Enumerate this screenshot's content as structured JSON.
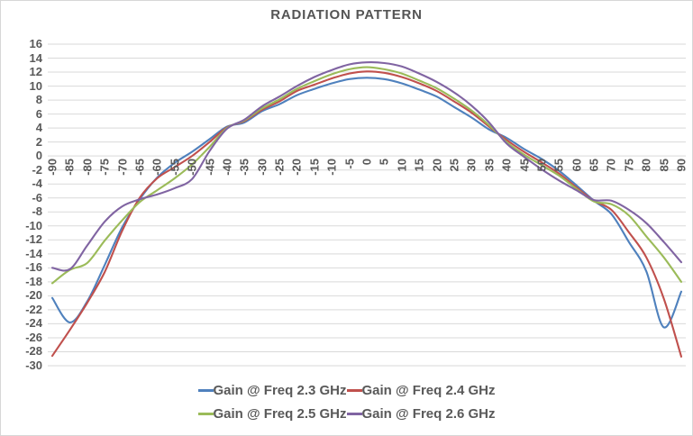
{
  "title": "RADIATION PATTERN",
  "style": {
    "text_color": "#595959",
    "grid_color": "#d9d9d9",
    "border_color": "#d7d7d7",
    "background": "#ffffff"
  },
  "chart_data": {
    "type": "line",
    "title": "RADIATION PATTERN",
    "xlabel": "",
    "ylabel": "",
    "grid": "horizontal",
    "legend_position": "bottom",
    "legend_rows": [
      [
        0,
        1
      ],
      [
        2,
        3
      ]
    ],
    "xlim": [
      -90,
      90
    ],
    "ylim": [
      -30,
      16
    ],
    "y_tick_step": 2,
    "y_ticks": [
      16,
      14,
      12,
      10,
      8,
      6,
      4,
      2,
      0,
      -2,
      -4,
      -6,
      -8,
      -10,
      -12,
      -14,
      -16,
      -18,
      -20,
      -22,
      -24,
      -26,
      -28,
      -30
    ],
    "x": [
      -90,
      -85,
      -80,
      -75,
      -70,
      -65,
      -60,
      -55,
      -50,
      -45,
      -40,
      -35,
      -30,
      -25,
      -20,
      -15,
      -10,
      -5,
      0,
      5,
      10,
      15,
      20,
      25,
      30,
      35,
      40,
      45,
      50,
      55,
      60,
      65,
      70,
      75,
      80,
      85,
      90
    ],
    "series": [
      {
        "name": "Gain @ Freq 2.3 GHz",
        "color": "#4F81BD",
        "values": [
          -20.3,
          -23.8,
          -20.8,
          -15.6,
          -10.2,
          -6.2,
          -3.1,
          -1.0,
          0.6,
          2.4,
          4.2,
          4.8,
          6.4,
          7.4,
          8.7,
          9.6,
          10.4,
          11.0,
          11.2,
          11.0,
          10.4,
          9.5,
          8.5,
          7.0,
          5.5,
          3.8,
          2.6,
          1.0,
          -0.4,
          -2.1,
          -4.2,
          -6.4,
          -8.3,
          -12.3,
          -16.5,
          -24.5,
          -19.4
        ]
      },
      {
        "name": "Gain @ Freq 2.4 GHz",
        "color": "#C0504D",
        "values": [
          -28.6,
          -24.9,
          -21.0,
          -16.6,
          -10.7,
          -6.0,
          -3.2,
          -1.6,
          0.0,
          2.0,
          4.1,
          5.0,
          6.6,
          7.8,
          9.3,
          10.2,
          11.1,
          11.8,
          12.1,
          11.9,
          11.3,
          10.4,
          9.3,
          7.8,
          6.2,
          4.2,
          2.3,
          0.6,
          -0.9,
          -2.5,
          -4.5,
          -6.4,
          -7.7,
          -10.9,
          -14.5,
          -20.4,
          -28.7
        ]
      },
      {
        "name": "Gain @ Freq 2.5 GHz",
        "color": "#9BBB59",
        "values": [
          -18.2,
          -16.3,
          -15.3,
          -12.1,
          -9.2,
          -6.6,
          -4.9,
          -3.2,
          -1.2,
          1.3,
          4.0,
          5.1,
          6.8,
          8.1,
          9.6,
          10.7,
          11.7,
          12.4,
          12.7,
          12.4,
          11.8,
          10.8,
          9.7,
          8.2,
          6.5,
          4.4,
          2.0,
          0.2,
          -1.3,
          -2.8,
          -4.7,
          -6.5,
          -6.9,
          -8.5,
          -11.5,
          -14.5,
          -18.0
        ]
      },
      {
        "name": "Gain @ Freq 2.6 GHz",
        "color": "#8064A2",
        "values": [
          -16.0,
          -16.2,
          -12.8,
          -9.4,
          -7.2,
          -6.2,
          -5.5,
          -4.6,
          -3.3,
          0.7,
          3.9,
          5.2,
          7.1,
          8.5,
          10.0,
          11.3,
          12.3,
          13.1,
          13.4,
          13.3,
          12.8,
          11.8,
          10.6,
          9.1,
          7.2,
          4.8,
          1.8,
          -0.1,
          -1.9,
          -3.5,
          -4.9,
          -6.3,
          -6.4,
          -7.7,
          -9.6,
          -12.3,
          -15.2
        ]
      }
    ]
  }
}
